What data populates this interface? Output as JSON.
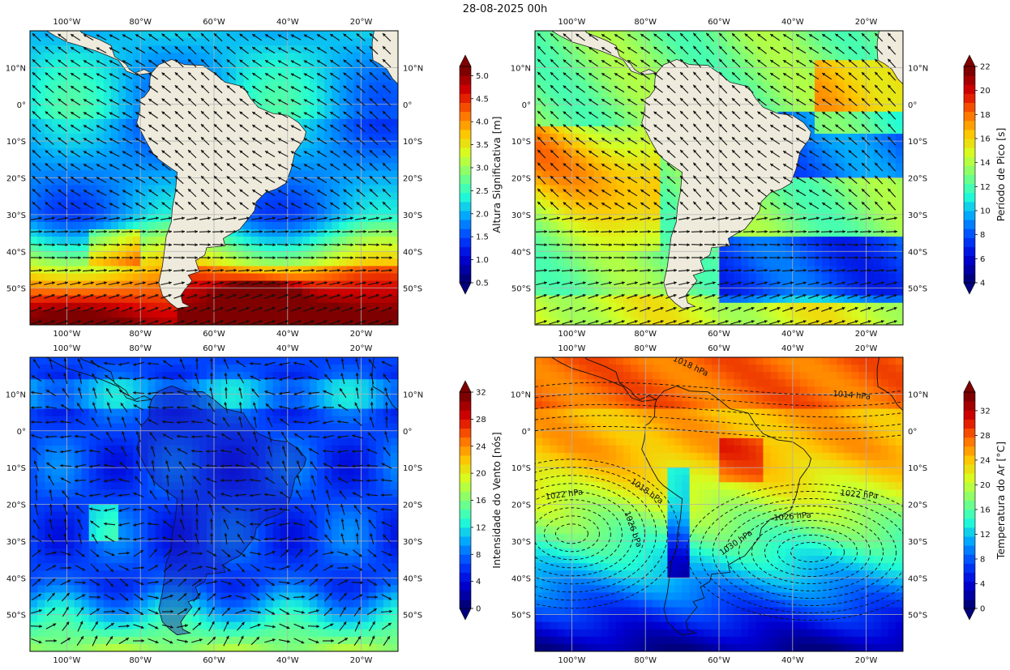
{
  "figure": {
    "title": "28-08-2025 00h",
    "lon_ticks": [
      "100°W",
      "80°W",
      "60°W",
      "40°W",
      "20°W"
    ],
    "lat_ticks": [
      "10°N",
      "0°",
      "10°S",
      "20°S",
      "30°S",
      "40°S",
      "50°S"
    ]
  },
  "colors": {
    "land": "#efebdc",
    "jet": [
      "#00007f",
      "#0000d5",
      "#0044ff",
      "#00a4ff",
      "#23ffd4",
      "#7dff7a",
      "#d4ff23",
      "#ffc400",
      "#ff6800",
      "#d70000",
      "#7f0000"
    ],
    "grid": "#b0b0b0",
    "arrow": "#111111"
  },
  "panels": [
    {
      "id": "wave-height",
      "colorbar_label": "Altura Significativa [m]",
      "colorbar_ticks": [
        "0.5",
        "1.0",
        "1.5",
        "2.0",
        "2.5",
        "3.0",
        "3.5",
        "4.0",
        "4.5",
        "5.0"
      ],
      "colorbar_range": [
        0.5,
        5.2
      ]
    },
    {
      "id": "peak-period",
      "colorbar_label": "Período de Pico [s]",
      "colorbar_ticks": [
        "4",
        "6",
        "8",
        "10",
        "12",
        "14",
        "16",
        "18",
        "20",
        "22"
      ],
      "colorbar_range": [
        4,
        22
      ]
    },
    {
      "id": "wind-speed",
      "colorbar_label": "Intensidade do Vento [nós]",
      "colorbar_ticks": [
        "0",
        "4",
        "8",
        "12",
        "16",
        "20",
        "24",
        "28",
        "32"
      ],
      "colorbar_range": [
        0,
        32
      ]
    },
    {
      "id": "air-temperature",
      "colorbar_label": "Temperatura do Ar [°C]",
      "colorbar_ticks": [
        "0",
        "4",
        "8",
        "12",
        "16",
        "20",
        "24",
        "28",
        "32"
      ],
      "colorbar_range": [
        0,
        35
      ],
      "isobar_labels": [
        "1018 hPa",
        "1014 hPa",
        "1022 hPa",
        "1018 hPa",
        "1026 hPa",
        "1022 hPa",
        "1026 hPa",
        "1030 hPa"
      ]
    }
  ]
}
